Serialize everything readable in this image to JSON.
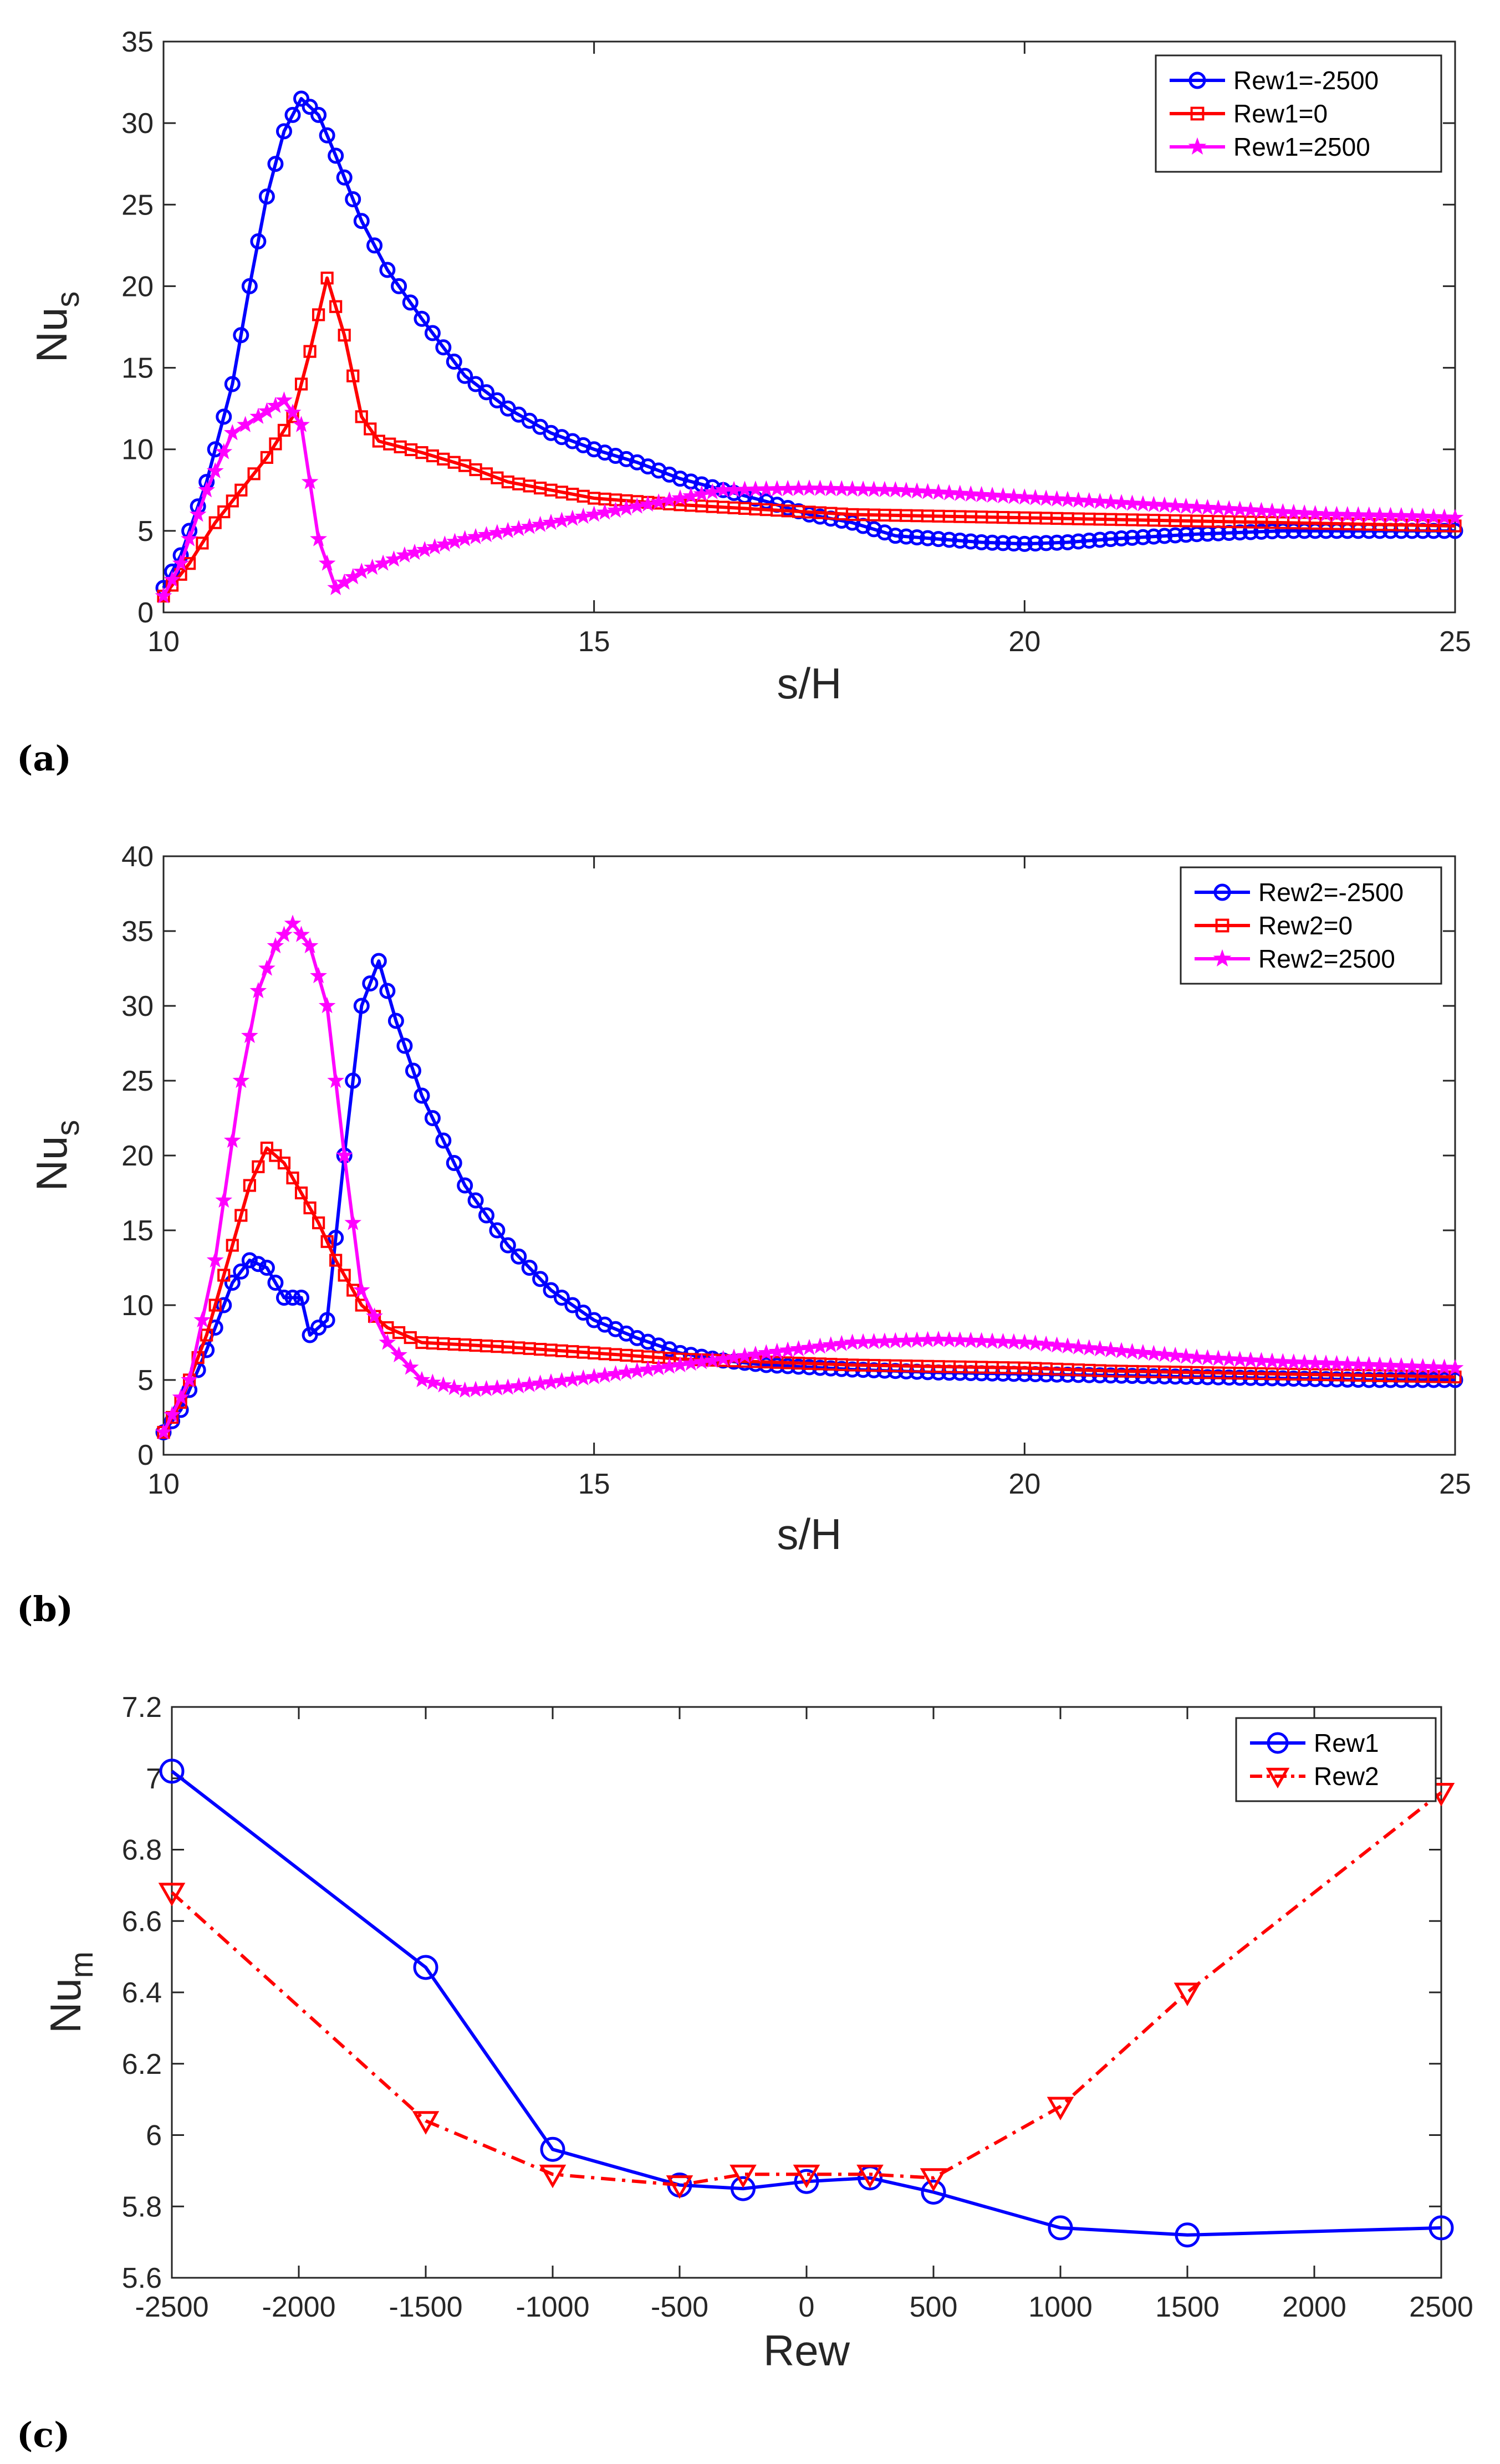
{
  "chart_data": [
    {
      "id": "a",
      "type": "line",
      "panel_label": "(a)",
      "xlabel": "s/H",
      "ylabel_main": "Nu",
      "ylabel_sub": "s",
      "xlim": [
        10,
        25
      ],
      "ylim": [
        0,
        35
      ],
      "xticks": [
        10,
        15,
        20,
        25
      ],
      "yticks": [
        0,
        5,
        10,
        15,
        20,
        25,
        30,
        35
      ],
      "legend_position": "top-right",
      "series": [
        {
          "name": "Rew1=-2500",
          "color": "#0000ff",
          "marker": "circle",
          "dense": true,
          "points": [
            [
              10,
              1.5
            ],
            [
              10.2,
              3.5
            ],
            [
              10.5,
              8
            ],
            [
              10.8,
              14
            ],
            [
              11.0,
              20
            ],
            [
              11.2,
              25.5
            ],
            [
              11.4,
              29.5
            ],
            [
              11.6,
              31.5
            ],
            [
              11.8,
              30.5
            ],
            [
              12.0,
              28
            ],
            [
              12.3,
              24
            ],
            [
              12.6,
              21
            ],
            [
              13.0,
              18
            ],
            [
              13.5,
              14.5
            ],
            [
              14.0,
              12.5
            ],
            [
              14.5,
              11
            ],
            [
              15.0,
              10
            ],
            [
              15.5,
              9.2
            ],
            [
              16.0,
              8.2
            ],
            [
              16.5,
              7.5
            ],
            [
              17.0,
              6.8
            ],
            [
              17.5,
              6
            ],
            [
              18.0,
              5.5
            ],
            [
              18.5,
              4.7
            ],
            [
              19.0,
              4.5
            ],
            [
              19.5,
              4.3
            ],
            [
              20.0,
              4.2
            ],
            [
              20.5,
              4.3
            ],
            [
              21.0,
              4.5
            ],
            [
              22.0,
              4.8
            ],
            [
              23.0,
              5
            ],
            [
              24.0,
              5
            ],
            [
              25.0,
              5
            ]
          ]
        },
        {
          "name": "Rew1=0",
          "color": "#ff0000",
          "marker": "square",
          "dense": true,
          "points": [
            [
              10,
              1
            ],
            [
              10.3,
              3
            ],
            [
              10.6,
              5.5
            ],
            [
              10.9,
              7.5
            ],
            [
              11.2,
              9.5
            ],
            [
              11.5,
              12
            ],
            [
              11.7,
              16
            ],
            [
              11.9,
              20.5
            ],
            [
              12.1,
              17
            ],
            [
              12.3,
              12
            ],
            [
              12.5,
              10.5
            ],
            [
              13.0,
              9.8
            ],
            [
              13.5,
              9
            ],
            [
              14.0,
              8
            ],
            [
              15.0,
              7
            ],
            [
              16.0,
              6.6
            ],
            [
              17.0,
              6.3
            ],
            [
              18.0,
              6.0
            ],
            [
              19.0,
              5.9
            ],
            [
              20.0,
              5.8
            ],
            [
              21.0,
              5.7
            ],
            [
              22.0,
              5.6
            ],
            [
              23.0,
              5.5
            ],
            [
              24.0,
              5.4
            ],
            [
              25.0,
              5.3
            ]
          ]
        },
        {
          "name": "Rew1=2500",
          "color": "#ff00ff",
          "marker": "star",
          "dense": true,
          "points": [
            [
              10,
              1
            ],
            [
              10.2,
              3
            ],
            [
              10.5,
              7.5
            ],
            [
              10.8,
              11
            ],
            [
              11.1,
              12
            ],
            [
              11.4,
              13
            ],
            [
              11.6,
              11.5
            ],
            [
              11.8,
              4.5
            ],
            [
              12.0,
              1.5
            ],
            [
              12.3,
              2.5
            ],
            [
              12.8,
              3.5
            ],
            [
              13.5,
              4.5
            ],
            [
              14.5,
              5.5
            ],
            [
              15.5,
              6.5
            ],
            [
              16.5,
              7.5
            ],
            [
              17.5,
              7.6
            ],
            [
              18.5,
              7.5
            ],
            [
              19.5,
              7.2
            ],
            [
              20.5,
              6.9
            ],
            [
              21.5,
              6.6
            ],
            [
              22.5,
              6.3
            ],
            [
              23.5,
              6.0
            ],
            [
              24.5,
              5.9
            ],
            [
              25.0,
              5.8
            ]
          ]
        }
      ]
    },
    {
      "id": "b",
      "type": "line",
      "panel_label": "(b)",
      "xlabel": "s/H",
      "ylabel_main": "Nu",
      "ylabel_sub": "s",
      "xlim": [
        10,
        25
      ],
      "ylim": [
        0,
        40
      ],
      "xticks": [
        10,
        15,
        20,
        25
      ],
      "yticks": [
        0,
        5,
        10,
        15,
        20,
        25,
        30,
        35,
        40
      ],
      "legend_position": "top-right",
      "series": [
        {
          "name": "Rew2=-2500",
          "color": "#0000ff",
          "marker": "circle",
          "dense": true,
          "points": [
            [
              10,
              1.5
            ],
            [
              10.2,
              3
            ],
            [
              10.5,
              7
            ],
            [
              10.8,
              11.5
            ],
            [
              11.0,
              13
            ],
            [
              11.2,
              12.5
            ],
            [
              11.4,
              10.5
            ],
            [
              11.6,
              10.5
            ],
            [
              11.7,
              8
            ],
            [
              11.9,
              9
            ],
            [
              12.1,
              20
            ],
            [
              12.3,
              30
            ],
            [
              12.5,
              33
            ],
            [
              12.7,
              29
            ],
            [
              13.0,
              24
            ],
            [
              13.5,
              18
            ],
            [
              14.0,
              14
            ],
            [
              14.5,
              11
            ],
            [
              15.0,
              9
            ],
            [
              15.5,
              7.8
            ],
            [
              16.0,
              6.8
            ],
            [
              16.5,
              6.3
            ],
            [
              17.0,
              6
            ],
            [
              18.0,
              5.7
            ],
            [
              19.0,
              5.5
            ],
            [
              20.0,
              5.4
            ],
            [
              21.0,
              5.3
            ],
            [
              22.0,
              5.2
            ],
            [
              23.0,
              5.1
            ],
            [
              24.0,
              5
            ],
            [
              25.0,
              5
            ]
          ]
        },
        {
          "name": "Rew2=0",
          "color": "#ff0000",
          "marker": "square",
          "dense": true,
          "points": [
            [
              10,
              1.5
            ],
            [
              10.2,
              3.5
            ],
            [
              10.5,
              8
            ],
            [
              10.8,
              14
            ],
            [
              11.0,
              18
            ],
            [
              11.2,
              20.5
            ],
            [
              11.4,
              19.5
            ],
            [
              11.6,
              17.5
            ],
            [
              11.8,
              15.5
            ],
            [
              12.0,
              13
            ],
            [
              12.3,
              10
            ],
            [
              12.6,
              8.5
            ],
            [
              13.0,
              7.5
            ],
            [
              14.0,
              7.2
            ],
            [
              15.0,
              6.8
            ],
            [
              16.0,
              6.4
            ],
            [
              17.0,
              6.2
            ],
            [
              18.0,
              6.0
            ],
            [
              19.0,
              5.9
            ],
            [
              20.0,
              5.8
            ],
            [
              21.0,
              5.6
            ],
            [
              22.0,
              5.5
            ],
            [
              23.0,
              5.4
            ],
            [
              24.0,
              5.3
            ],
            [
              25.0,
              5.2
            ]
          ]
        },
        {
          "name": "Rew2=2500",
          "color": "#ff00ff",
          "marker": "star",
          "dense": true,
          "points": [
            [
              10,
              1.5
            ],
            [
              10.3,
              5
            ],
            [
              10.6,
              13
            ],
            [
              10.9,
              25
            ],
            [
              11.1,
              31
            ],
            [
              11.3,
              34
            ],
            [
              11.5,
              35.5
            ],
            [
              11.7,
              34
            ],
            [
              11.9,
              30
            ],
            [
              12.1,
              20
            ],
            [
              12.3,
              11
            ],
            [
              12.6,
              7.5
            ],
            [
              13.0,
              5
            ],
            [
              13.5,
              4.3
            ],
            [
              14.0,
              4.5
            ],
            [
              15.0,
              5.2
            ],
            [
              16.0,
              6.0
            ],
            [
              17.0,
              6.8
            ],
            [
              18.0,
              7.5
            ],
            [
              19.0,
              7.7
            ],
            [
              20.0,
              7.5
            ],
            [
              21.0,
              7.0
            ],
            [
              22.0,
              6.5
            ],
            [
              23.0,
              6.2
            ],
            [
              24.0,
              6.0
            ],
            [
              25.0,
              5.8
            ]
          ]
        }
      ]
    },
    {
      "id": "c",
      "type": "line",
      "panel_label": "(c)",
      "xlabel": "Rew",
      "ylabel_main": "Nu",
      "ylabel_sub": "m",
      "xlim": [
        -2500,
        2500
      ],
      "ylim": [
        5.6,
        7.2
      ],
      "xticks": [
        -2500,
        -2000,
        -1500,
        -1000,
        -500,
        0,
        500,
        1000,
        1500,
        2000,
        2500
      ],
      "yticks": [
        5.6,
        5.8,
        6,
        6.2,
        6.4,
        6.6,
        6.8,
        7,
        7.2
      ],
      "legend_position": "top-right",
      "series": [
        {
          "name": "Rew1",
          "color": "#0000ff",
          "marker": "circle",
          "dense": false,
          "dash": "",
          "points": [
            [
              -2500,
              7.02
            ],
            [
              -1500,
              6.47
            ],
            [
              -1000,
              5.96
            ],
            [
              -500,
              5.86
            ],
            [
              -250,
              5.85
            ],
            [
              0,
              5.87
            ],
            [
              250,
              5.88
            ],
            [
              500,
              5.84
            ],
            [
              1000,
              5.74
            ],
            [
              1500,
              5.72
            ],
            [
              2500,
              5.74
            ]
          ]
        },
        {
          "name": "Rew2",
          "color": "#ff0000",
          "marker": "triangle-down",
          "dense": false,
          "dash": "26 12 6 12",
          "points": [
            [
              -2500,
              6.68
            ],
            [
              -1500,
              6.04
            ],
            [
              -1000,
              5.89
            ],
            [
              -500,
              5.86
            ],
            [
              -250,
              5.89
            ],
            [
              0,
              5.89
            ],
            [
              250,
              5.89
            ],
            [
              500,
              5.88
            ],
            [
              1000,
              6.08
            ],
            [
              1500,
              6.4
            ],
            [
              2500,
              6.96
            ]
          ]
        }
      ]
    }
  ]
}
